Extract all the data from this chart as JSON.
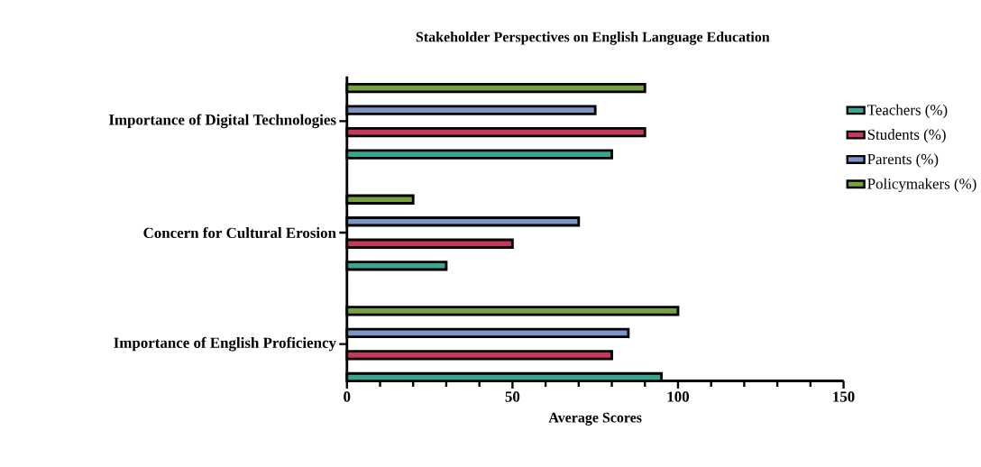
{
  "chart_data": {
    "type": "bar",
    "orientation": "horizontal",
    "title": "Stakeholder Perspectives on English Language Education",
    "xlabel": "Average Scores",
    "categories": [
      "Importance of Digital Technologies",
      "Concern for Cultural Erosion",
      "Importance of English Proficiency"
    ],
    "series": [
      {
        "name": "Teachers (%)",
        "color": "#3aa593",
        "values": [
          80,
          30,
          95
        ]
      },
      {
        "name": "Students (%)",
        "color": "#c8385e",
        "values": [
          90,
          50,
          80
        ]
      },
      {
        "name": "Parents (%)",
        "color": "#7d94c6",
        "values": [
          75,
          70,
          85
        ]
      },
      {
        "name": "Policymakers (%)",
        "color": "#76a140",
        "values": [
          90,
          20,
          100
        ]
      }
    ],
    "xlim": [
      0,
      150
    ],
    "xticks": [
      0,
      50,
      100,
      150
    ],
    "grid": false,
    "legend": "right"
  }
}
